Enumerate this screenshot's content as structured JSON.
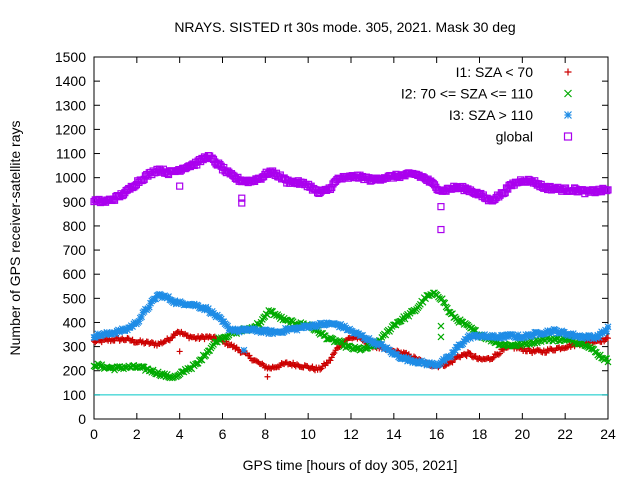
{
  "chart_data": {
    "type": "scatter",
    "title": "NRAYS. SISTED rt 30s mode. 305, 2021. Mask 30 deg",
    "xlabel": "GPS time [hours of doy 305, 2021]",
    "ylabel": "Number of GPS receiver-satellite rays",
    "xlim": [
      0,
      24
    ],
    "ylim": [
      0,
      1500
    ],
    "xticks": [
      "0",
      "2",
      "4",
      "6",
      "8",
      "10",
      "12",
      "14",
      "16",
      "18",
      "20",
      "22",
      "24"
    ],
    "yticks": [
      "0",
      "100",
      "200",
      "300",
      "400",
      "500",
      "600",
      "700",
      "800",
      "900",
      "1000",
      "1100",
      "1200",
      "1300",
      "1400",
      "1500"
    ],
    "reference_line": {
      "y": 100,
      "color": "#00c8c8"
    },
    "legend_position": "top-right",
    "series": [
      {
        "name": "I1: SZA < 70",
        "marker": "+",
        "color": "#cc0000",
        "x": [
          0,
          0.5,
          1,
          1.5,
          2,
          2.5,
          3,
          3.5,
          3.9,
          4.3,
          4.8,
          5.3,
          5.8,
          6.3,
          6.8,
          7.3,
          7.8,
          8.2,
          8.6,
          9,
          9.5,
          10,
          10.5,
          11,
          11.4,
          11.8,
          12.2,
          12.6,
          13,
          13.5,
          14,
          14.5,
          15,
          15.5,
          16,
          16.3,
          16.6,
          17,
          17.5,
          18,
          18.5,
          19,
          19.5,
          20,
          20.5,
          21,
          21.5,
          22,
          22.5,
          23,
          23.5,
          24
        ],
        "values": [
          320,
          325,
          330,
          330,
          320,
          315,
          310,
          330,
          365,
          345,
          335,
          340,
          330,
          310,
          285,
          255,
          225,
          210,
          220,
          230,
          225,
          215,
          205,
          240,
          300,
          330,
          340,
          325,
          305,
          290,
          280,
          270,
          250,
          230,
          220,
          225,
          230,
          260,
          270,
          245,
          250,
          280,
          300,
          290,
          280,
          280,
          290,
          300,
          310,
          320,
          325,
          330
        ],
        "outliers": [
          [
            4.0,
            280
          ],
          [
            8.1,
            175
          ]
        ]
      },
      {
        "name": "I2: 70 <= SZA <= 110",
        "marker": "x",
        "color": "#00aa00",
        "x": [
          0,
          0.5,
          1,
          1.5,
          2,
          2.5,
          3,
          3.5,
          3.9,
          4.3,
          4.8,
          5.3,
          5.8,
          6.3,
          6.8,
          7.3,
          7.8,
          8.2,
          8.6,
          9,
          9.5,
          10,
          10.5,
          11,
          11.4,
          11.8,
          12.2,
          12.6,
          13,
          13.5,
          14,
          14.5,
          15,
          15.5,
          16,
          16.3,
          16.6,
          17,
          17.5,
          18,
          18.5,
          19,
          19.5,
          20,
          20.5,
          21,
          21.5,
          22,
          22.5,
          23,
          23.5,
          24
        ],
        "values": [
          225,
          215,
          210,
          215,
          215,
          205,
          190,
          175,
          175,
          205,
          225,
          280,
          330,
          350,
          365,
          375,
          400,
          450,
          425,
          405,
          395,
          390,
          360,
          330,
          320,
          300,
          290,
          290,
          300,
          340,
          390,
          420,
          450,
          505,
          520,
          490,
          440,
          410,
          380,
          350,
          330,
          310,
          305,
          310,
          320,
          330,
          330,
          330,
          320,
          310,
          270,
          240
        ],
        "outliers": [
          [
            16.2,
            340
          ],
          [
            16.2,
            385
          ]
        ]
      },
      {
        "name": "I3: SZA > 110",
        "marker": "*",
        "color": "#1e8ce6",
        "x": [
          0,
          0.5,
          1,
          1.5,
          2,
          2.5,
          3,
          3.5,
          3.9,
          4.3,
          4.8,
          5.3,
          5.8,
          6.3,
          6.8,
          7.3,
          7.8,
          8.2,
          8.6,
          9,
          9.5,
          10,
          10.5,
          11,
          11.4,
          11.8,
          12.2,
          12.6,
          13,
          13.5,
          14,
          14.5,
          15,
          15.5,
          16,
          16.3,
          16.6,
          17,
          17.5,
          18,
          18.5,
          19,
          19.5,
          20,
          20.5,
          21,
          21.5,
          22,
          22.5,
          23,
          23.5,
          24
        ],
        "values": [
          345,
          350,
          360,
          370,
          400,
          460,
          515,
          500,
          480,
          480,
          470,
          455,
          420,
          375,
          365,
          370,
          365,
          360,
          360,
          370,
          375,
          385,
          390,
          395,
          390,
          375,
          355,
          340,
          320,
          300,
          270,
          250,
          240,
          230,
          225,
          240,
          255,
          300,
          340,
          345,
          340,
          340,
          345,
          340,
          350,
          360,
          365,
          355,
          345,
          340,
          340,
          375
        ],
        "outliers": [
          [
            7.0,
            285
          ]
        ]
      },
      {
        "name": "global",
        "marker": "square",
        "color": "#aa00ee",
        "x": [
          0,
          0.5,
          1,
          1.5,
          2,
          2.5,
          3,
          3.5,
          3.9,
          4.3,
          4.8,
          5.3,
          5.8,
          6.3,
          6.8,
          7.3,
          7.8,
          8.2,
          8.6,
          9,
          9.5,
          10,
          10.5,
          11,
          11.4,
          11.8,
          12.2,
          12.6,
          13,
          13.5,
          14,
          14.5,
          15,
          15.5,
          16,
          16.3,
          16.6,
          17,
          17.5,
          18,
          18.5,
          19,
          19.5,
          20,
          20.5,
          21,
          21.5,
          22,
          22.5,
          23,
          23.5,
          24
        ],
        "values": [
          905,
          900,
          915,
          940,
          980,
          1010,
          1035,
          1020,
          1030,
          1045,
          1060,
          1090,
          1055,
          1015,
          990,
          985,
          1000,
          1025,
          1010,
          985,
          980,
          970,
          935,
          955,
          995,
          1000,
          1005,
          1000,
          990,
          1000,
          1005,
          1010,
          1015,
          995,
          960,
          945,
          955,
          960,
          950,
          930,
          905,
          930,
          970,
          990,
          985,
          960,
          955,
          950,
          950,
          940,
          945,
          950
        ],
        "outliers": [
          [
            4.0,
            965
          ],
          [
            6.9,
            895
          ],
          [
            6.9,
            915
          ],
          [
            16.2,
            880
          ],
          [
            16.2,
            785
          ]
        ]
      }
    ]
  }
}
